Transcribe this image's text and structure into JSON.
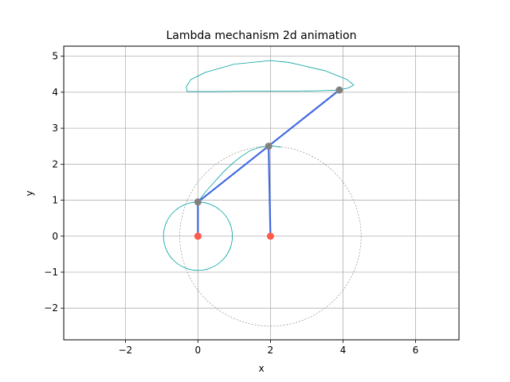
{
  "chart_data": {
    "type": "line",
    "title": "Lambda mechanism 2d animation",
    "xlabel": "x",
    "ylabel": "y",
    "xlim": [
      -3.7,
      7.2
    ],
    "ylim": [
      -2.88,
      5.28
    ],
    "grid": true,
    "xticks": [
      -2,
      0,
      2,
      4,
      6
    ],
    "yticks": [
      -2,
      -1,
      0,
      1,
      2,
      3,
      4,
      5
    ],
    "xtick_labels": [
      "−2",
      "0",
      "2",
      "4",
      "6"
    ],
    "ytick_labels": [
      "−2",
      "−1",
      "0",
      "1",
      "2",
      "3",
      "4",
      "5"
    ],
    "crank_circle": {
      "center": [
        0,
        0
      ],
      "radius": 0.95
    },
    "reference_circle": {
      "center": [
        2,
        0
      ],
      "radius": 2.5
    },
    "coupler_trace": [
      [
        0.0,
        0.95
      ],
      [
        0.2,
        1.22
      ],
      [
        0.45,
        1.5
      ],
      [
        0.7,
        1.78
      ],
      [
        0.95,
        2.02
      ],
      [
        1.2,
        2.22
      ],
      [
        1.45,
        2.38
      ],
      [
        1.7,
        2.47
      ],
      [
        1.95,
        2.5
      ],
      [
        2.1,
        2.5
      ],
      [
        2.3,
        2.47
      ]
    ],
    "tracer_path": [
      [
        -0.3,
        4.02
      ],
      [
        0.5,
        4.02
      ],
      [
        1.5,
        4.03
      ],
      [
        2.5,
        4.03
      ],
      [
        3.3,
        4.04
      ],
      [
        3.9,
        4.06
      ],
      [
        4.15,
        4.12
      ],
      [
        4.3,
        4.2
      ],
      [
        4.1,
        4.36
      ],
      [
        3.5,
        4.6
      ],
      [
        2.5,
        4.83
      ],
      [
        2.0,
        4.88
      ],
      [
        1.0,
        4.78
      ],
      [
        0.2,
        4.55
      ],
      [
        -0.2,
        4.35
      ],
      [
        -0.32,
        4.15
      ],
      [
        -0.3,
        4.02
      ]
    ],
    "links": [
      [
        [
          0,
          0
        ],
        [
          0,
          0.95
        ]
      ],
      [
        [
          2,
          0
        ],
        [
          1.95,
          2.5
        ]
      ],
      [
        [
          0,
          0.95
        ],
        [
          3.9,
          4.06
        ]
      ]
    ],
    "fixed_joints": [
      [
        0,
        0
      ],
      [
        2,
        0
      ]
    ],
    "moving_joints": [
      [
        0,
        0.95
      ],
      [
        1.95,
        2.5
      ],
      [
        3.9,
        4.06
      ]
    ],
    "colors": {
      "trace": "#00a0a0",
      "link": "#4169e1",
      "fixed_joint": "#ff5a4a",
      "moving_joint": "#808080",
      "reference_circle": "#808080",
      "grid": "#b0b0b0"
    }
  }
}
